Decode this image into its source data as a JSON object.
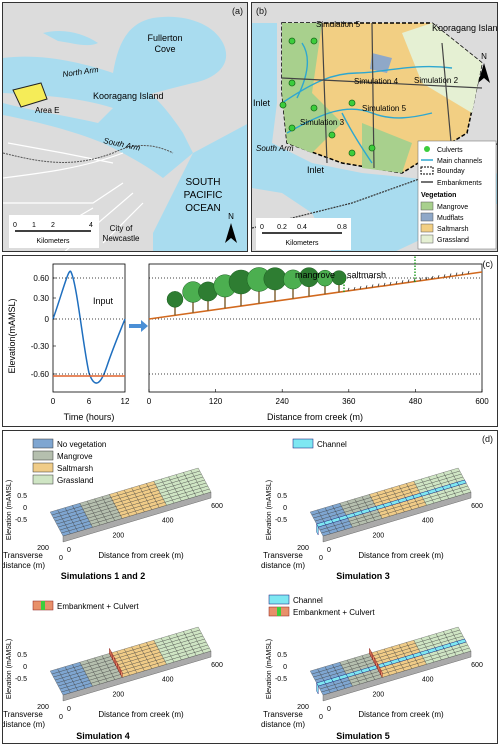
{
  "panel_a": {
    "tag": "(a)",
    "labels": {
      "fullerton_cove": [
        "Fullerton",
        "Cove"
      ],
      "north_arm": "North Arm",
      "kooragang": "Kooragang Island",
      "area_e": "Area E",
      "south_arm": "South Arm",
      "ocean": [
        "SOUTH",
        "PACIFIC",
        "OCEAN"
      ],
      "city": [
        "City of",
        "Newcastle"
      ],
      "north": "N"
    },
    "scale": {
      "ticks": [
        "0",
        "1",
        "2",
        "4"
      ],
      "unit": "Kilometers"
    },
    "colors": {
      "water": "#a9dcef",
      "land": "#dcdcdc",
      "roads": "#ffffff",
      "area_e": "#f5ec58"
    }
  },
  "panel_b": {
    "tag": "(b)",
    "labels": {
      "kooragang": "Kooragang Island",
      "sims": [
        "Simulation 5",
        "Simulation 4",
        "Simulation 2",
        "Simulation 5",
        "Simulation 3"
      ],
      "inlet": [
        "Inlet",
        "Inlet"
      ],
      "south_arm": "South Arm",
      "north": "N"
    },
    "legend": {
      "items": [
        "Culverts",
        "Main channels",
        "Bounday",
        "Embankments"
      ],
      "veg_title": "Vegetation",
      "veg": [
        {
          "name": "Mangrove",
          "color": "#a8d08d"
        },
        {
          "name": "Mudflats",
          "color": "#8fa8c8"
        },
        {
          "name": "Saltmarsh",
          "color": "#f2cf83"
        },
        {
          "name": "Grassland",
          "color": "#e5f0d3"
        }
      ]
    },
    "scale": {
      "ticks": [
        "0",
        "0.2",
        "0.4",
        "0.8"
      ],
      "unit": "Kilometers"
    }
  },
  "panel_c": {
    "tag": "(c)",
    "ylabel": "Elevation(mAMSL)",
    "yticks": [
      "0.60",
      "0.30",
      "0",
      "-0.30",
      "-0.60"
    ],
    "left": {
      "xticks": [
        "0",
        "6",
        "12"
      ],
      "xlabel": "Time (hours)",
      "input_label": "Input"
    },
    "right": {
      "xticks": [
        "0",
        "120",
        "240",
        "360",
        "480",
        "600"
      ],
      "xlabel": "Distance from creek (m)",
      "mangrove": "mangrove",
      "saltmarsh": "saltmarsh"
    }
  },
  "panel_d": {
    "tag": "(d)",
    "legend1": [
      "No vegetation",
      "Mangrove",
      "Saltmarsh",
      "Grassland"
    ],
    "legend_colors": [
      "#7fa6d1",
      "#b5bfae",
      "#f0cc88",
      "#cfe5c4"
    ],
    "channel": "Channel",
    "embankment": "Embankment + Culvert",
    "zlabel": "Elevation (mAMSL)",
    "zticks": [
      "0.5",
      "0",
      "-0.5"
    ],
    "xlabel": "Distance from creek (m)",
    "xticks": [
      "0",
      "200",
      "400",
      "600"
    ],
    "ylabel": [
      "Transverse",
      "distance (m)"
    ],
    "yticks": [
      "200",
      "0"
    ],
    "titles": [
      "Simulations 1 and 2",
      "Simulation 3",
      "Simulation  4",
      "Simulation 5"
    ]
  }
}
